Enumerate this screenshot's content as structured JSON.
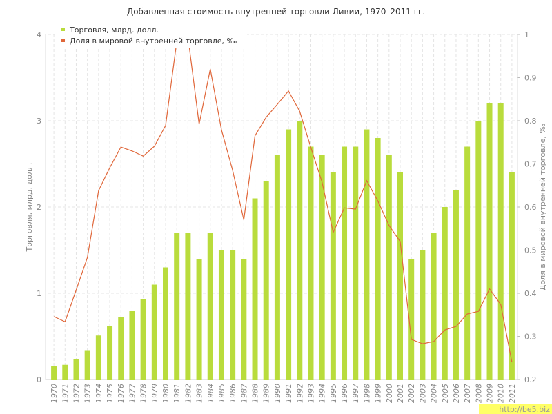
{
  "chart_data": {
    "type": "bar-line",
    "title": "Добавленная стоимость внутренней торговли Ливии, 1970–2011 гг.",
    "y_label": "Торговля, млрд. долл.",
    "y2_label": "Доля в мировой внутренней торговле, ‰",
    "watermark": "http://be5.biz",
    "categories": [
      "1970",
      "1971",
      "1972",
      "1973",
      "1974",
      "1975",
      "1976",
      "1977",
      "1978",
      "1979",
      "1980",
      "1981",
      "1982",
      "1983",
      "1984",
      "1985",
      "1986",
      "1987",
      "1988",
      "1989",
      "1990",
      "1991",
      "1992",
      "1993",
      "1994",
      "1995",
      "1996",
      "1997",
      "1998",
      "1999",
      "2000",
      "2001",
      "2002",
      "2003",
      "2004",
      "2005",
      "2006",
      "2007",
      "2008",
      "2009",
      "2010",
      "2011"
    ],
    "series": [
      {
        "name": "Торговля, млрд. долл.",
        "color": "#b9dc3c",
        "kind": "bar",
        "values": [
          0.16,
          0.17,
          0.24,
          0.34,
          0.51,
          0.62,
          0.72,
          0.8,
          0.93,
          1.1,
          1.3,
          1.7,
          1.7,
          1.4,
          1.7,
          1.5,
          1.5,
          1.4,
          2.1,
          2.3,
          2.6,
          2.9,
          3.0,
          2.7,
          2.6,
          2.4,
          2.7,
          2.7,
          2.9,
          2.8,
          2.6,
          2.4,
          1.4,
          1.5,
          1.7,
          2.0,
          2.2,
          2.7,
          3.0,
          3.2,
          3.2,
          2.4
        ]
      },
      {
        "name": "Доля в мировой внутренней торговле, ‰",
        "color": "#e0673a",
        "kind": "line",
        "axis": "y2",
        "values": [
          0.346,
          0.334,
          0.408,
          0.483,
          0.638,
          0.691,
          0.739,
          0.73,
          0.718,
          0.741,
          0.789,
          0.984,
          0.995,
          0.792,
          0.92,
          0.779,
          0.685,
          0.57,
          0.765,
          0.808,
          0.838,
          0.869,
          0.822,
          0.738,
          0.658,
          0.541,
          0.598,
          0.595,
          0.661,
          0.614,
          0.557,
          0.52,
          0.293,
          0.283,
          0.288,
          0.315,
          0.323,
          0.352,
          0.358,
          0.41,
          0.374,
          0.24
        ]
      }
    ],
    "ylim": [
      0,
      4
    ],
    "yticks": [
      0,
      1,
      2,
      3,
      4
    ],
    "y2lim": [
      0.2,
      1
    ],
    "y2ticks": [
      0.2,
      0.3,
      0.4,
      0.5,
      0.6,
      0.7,
      0.8,
      0.9,
      1
    ],
    "grid": true
  }
}
